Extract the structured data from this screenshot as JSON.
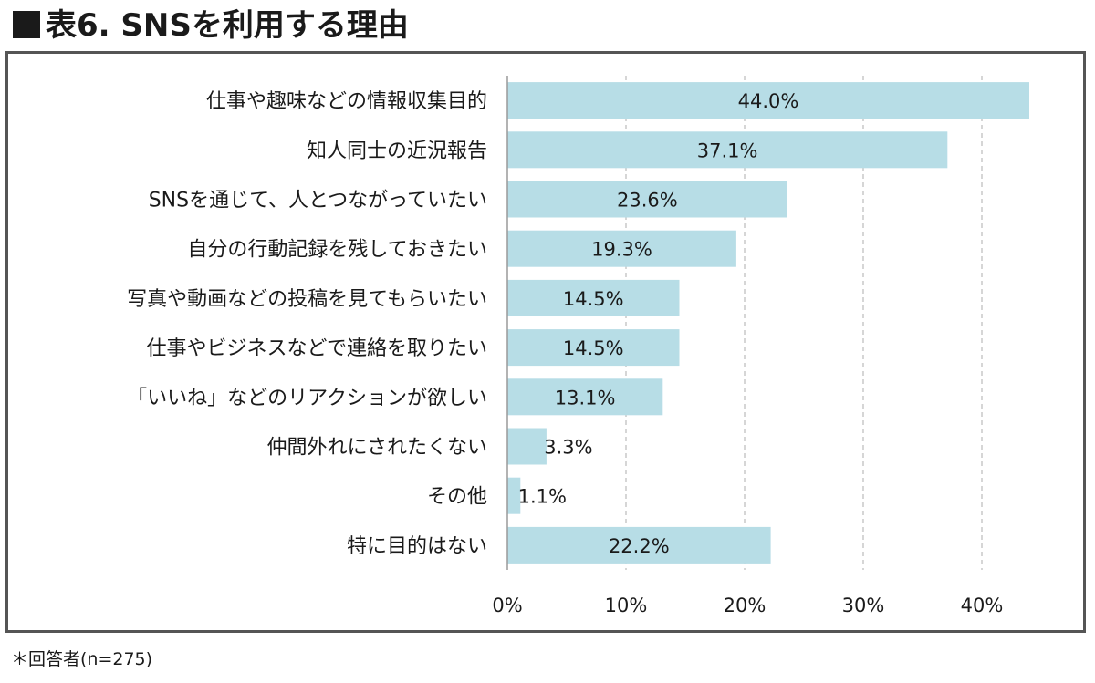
{
  "header": {
    "title": "表6. SNSを利用する理由"
  },
  "footnote": "＊回答者(n=275)",
  "colors": {
    "bar": "#b7dde6",
    "grid": "#c8c8c8",
    "axis": "#9a9a9a",
    "text": "#1a1a1a"
  },
  "chart_data": {
    "type": "bar",
    "orientation": "horizontal",
    "title": "",
    "xlabel": "",
    "ylabel": "",
    "categories": [
      "仕事や趣味などの情報収集目的",
      "知人同士の近況報告",
      "SNSを通じて、人とつながっていたい",
      "自分の行動記録を残しておきたい",
      "写真や動画などの投稿を見てもらいたい",
      "仕事やビジネスなどで連絡を取りたい",
      "「いいね」などのリアクションが欲しい",
      "仲間外れにされたくない",
      "その他",
      "特に目的はない"
    ],
    "values": [
      44.0,
      37.1,
      23.6,
      19.3,
      14.5,
      14.5,
      13.1,
      3.3,
      1.1,
      22.2
    ],
    "value_labels": [
      "44.0%",
      "37.1%",
      "23.6%",
      "19.3%",
      "14.5%",
      "14.5%",
      "13.1%",
      "3.3%",
      "1.1%",
      "22.2%"
    ],
    "xlim": [
      0,
      45
    ],
    "ticks": [
      0,
      10,
      20,
      30,
      40
    ],
    "tick_labels": [
      "0%",
      "10%",
      "20%",
      "30%",
      "40%"
    ],
    "grid": "vertical dashed",
    "legend": "none"
  }
}
